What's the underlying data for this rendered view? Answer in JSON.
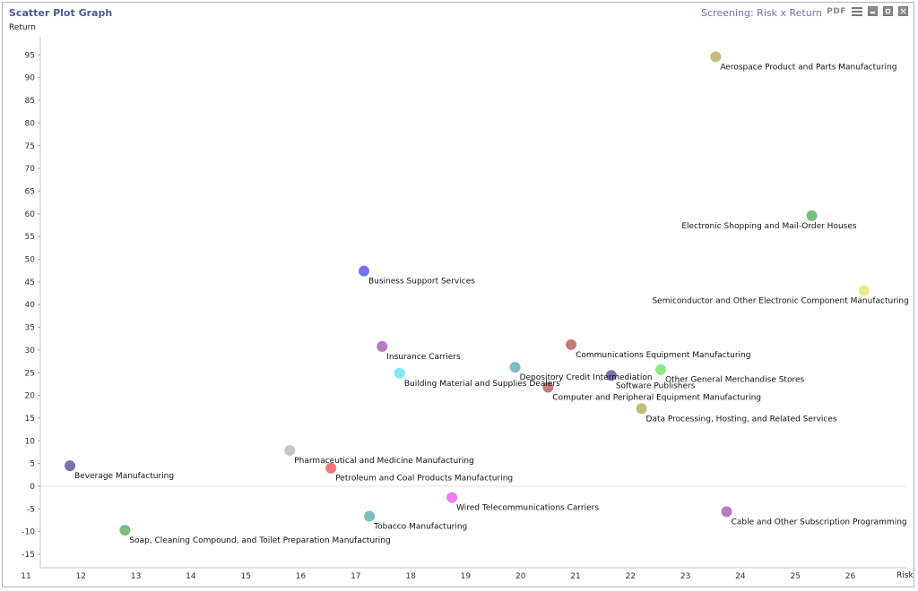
{
  "header": {
    "title": "Scatter Plot Graph",
    "screening": "Screening: Risk x Return",
    "pdf_label": "PDF"
  },
  "toolbar": {
    "icons": [
      "menu-icon",
      "minimize-icon",
      "maximize-icon",
      "close-icon"
    ]
  },
  "chart_data": {
    "type": "scatter",
    "title": "",
    "xlabel": "Risk",
    "ylabel": "Return",
    "xlim": [
      11,
      27
    ],
    "ylim": [
      -15,
      95
    ],
    "x_ticks": [
      11,
      12,
      13,
      14,
      15,
      16,
      17,
      18,
      19,
      20,
      21,
      22,
      23,
      24,
      25,
      26
    ],
    "y_ticks": [
      -15,
      -10,
      -5,
      0,
      5,
      10,
      15,
      20,
      25,
      30,
      35,
      40,
      45,
      50,
      55,
      60,
      65,
      70,
      75,
      80,
      85,
      90,
      95
    ],
    "grid": false,
    "zero_line": true,
    "points": [
      {
        "name": "Aerospace Product and Parts Manufacturing",
        "x": 23.55,
        "y": 94.6,
        "color": "#c2bd78",
        "label_pos": "below-right"
      },
      {
        "name": "Electronic Shopping and Mail-Order Houses",
        "x": 25.3,
        "y": 59.6,
        "color": "#7cbd7d",
        "label_pos": "below-left"
      },
      {
        "name": "Semiconductor and Other Electronic Component Manufacturing",
        "x": 26.25,
        "y": 43.1,
        "color": "#ecec84",
        "label_pos": "below-left"
      },
      {
        "name": "Business Support Services",
        "x": 17.15,
        "y": 47.4,
        "color": "#7474ec",
        "label_pos": "below-right"
      },
      {
        "name": "Insurance Carriers",
        "x": 17.48,
        "y": 30.8,
        "color": "#b57cc2",
        "label_pos": "below-right"
      },
      {
        "name": "Communications Equipment Manufacturing",
        "x": 20.92,
        "y": 31.2,
        "color": "#c27c78",
        "label_pos": "below-right"
      },
      {
        "name": "Building Material and Supplies Dealers",
        "x": 17.8,
        "y": 24.9,
        "color": "#84e8f0",
        "label_pos": "below-right"
      },
      {
        "name": "Depository Credit Intermediation",
        "x": 19.9,
        "y": 26.2,
        "color": "#7cbcc2",
        "label_pos": "below-right"
      },
      {
        "name": "Software Publishers",
        "x": 21.65,
        "y": 24.4,
        "color": "#7474b0",
        "label_pos": "below-right"
      },
      {
        "name": "Other General Merchandise Stores",
        "x": 22.55,
        "y": 25.7,
        "color": "#8aea84",
        "label_pos": "below-right"
      },
      {
        "name": "Computer and Peripheral Equipment Manufacturing",
        "x": 20.5,
        "y": 21.8,
        "color": "#c27c78",
        "label_pos": "below-right"
      },
      {
        "name": "Data Processing, Hosting, and Related Services",
        "x": 22.2,
        "y": 17.1,
        "color": "#c2bd78",
        "label_pos": "below-right"
      },
      {
        "name": "Pharmaceutical and Medicine Manufacturing",
        "x": 15.8,
        "y": 7.9,
        "color": "#c6c6c6",
        "label_pos": "below-right"
      },
      {
        "name": "Beverage Manufacturing",
        "x": 11.8,
        "y": 4.5,
        "color": "#7474b0",
        "label_pos": "below-right"
      },
      {
        "name": "Petroleum and Coal Products Manufacturing",
        "x": 16.55,
        "y": 4.0,
        "color": "#f07878",
        "label_pos": "below-right"
      },
      {
        "name": "Wired Telecommunications Carriers",
        "x": 18.75,
        "y": -2.5,
        "color": "#f07cf0",
        "label_pos": "below-right"
      },
      {
        "name": "Tobacco Manufacturing",
        "x": 17.25,
        "y": -6.6,
        "color": "#7cbcc2",
        "label_pos": "below-right"
      },
      {
        "name": "Cable and Other Subscription Programming",
        "x": 23.75,
        "y": -5.6,
        "color": "#b57cc2",
        "label_pos": "below-right"
      },
      {
        "name": "Soap, Cleaning Compound, and Toilet Preparation Manufacturing",
        "x": 12.8,
        "y": -9.7,
        "color": "#7cbd7d",
        "label_pos": "below-right"
      }
    ]
  }
}
